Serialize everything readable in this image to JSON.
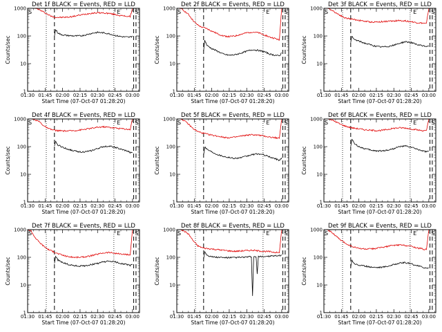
{
  "figure": {
    "x_tick_labels": [
      "01:30",
      "01:45",
      "02:00",
      "02:15",
      "02:30",
      "02:45",
      "03:00"
    ],
    "y_tick_labels": [
      "1",
      "10",
      "100",
      "1000"
    ],
    "xlabel": "Start Time (07-Oct-07 01:28:20)",
    "ylabel": "Counts/sec",
    "marker_s": "S",
    "marker_e": "E",
    "colors": {
      "events": "#000000",
      "lld": "#e00000"
    }
  },
  "chart_data": [
    {
      "type": "line",
      "title": "Det 1f BLACK = Events, RED = LLD",
      "xlabel": "Start Time (07-Oct-07 01:28:20)",
      "ylabel": "Counts/sec",
      "y_scale": "log",
      "ylim": [
        1,
        1000
      ],
      "xlim_minutes_from_0130": [
        0,
        96
      ],
      "markers": {
        "S_minute": 0,
        "E_minute": 76,
        "dotted_minutes": [
          16,
          74
        ],
        "dashed_minutes": [
          23,
          91,
          93
        ]
      },
      "series": [
        {
          "color": "red",
          "x": [
            0,
            2,
            5,
            8,
            12,
            16,
            20,
            23,
            27,
            30,
            35,
            40,
            45,
            50,
            55,
            60,
            65,
            70,
            75,
            80,
            85,
            88,
            90,
            92,
            94,
            95,
            96
          ],
          "y": [
            1000,
            1000,
            1000,
            980,
            800,
            650,
            520,
            480,
            470,
            470,
            480,
            520,
            570,
            620,
            670,
            690,
            680,
            650,
            600,
            540,
            520,
            500,
            1000,
            1000,
            1000,
            1000,
            1000
          ]
        },
        {
          "color": "black",
          "x": [
            23,
            24,
            26,
            28,
            31,
            34,
            38,
            42,
            46,
            50,
            55,
            60,
            65,
            70,
            75,
            80,
            84,
            87,
            89,
            90
          ],
          "y": [
            100,
            170,
            130,
            115,
            108,
            104,
            101,
            100,
            102,
            110,
            125,
            135,
            130,
            120,
            105,
            95,
            92,
            90,
            95,
            100
          ]
        }
      ]
    },
    {
      "type": "line",
      "title": "Det 2f BLACK = Events, RED = LLD",
      "xlabel": "Start Time (07-Oct-07 01:28:20)",
      "ylabel": "Counts/sec",
      "y_scale": "log",
      "ylim": [
        1,
        1000
      ],
      "xlim_minutes_from_0130": [
        0,
        96
      ],
      "markers": {
        "S_minute": 0,
        "E_minute": 76,
        "dotted_minutes": [
          16,
          74
        ],
        "dashed_minutes": [
          23,
          91,
          93
        ]
      },
      "series": [
        {
          "color": "red",
          "x": [
            0,
            2,
            5,
            10,
            15,
            18,
            21,
            25,
            30,
            35,
            40,
            45,
            50,
            55,
            60,
            65,
            70,
            75,
            80,
            85,
            88,
            90,
            92,
            94,
            96
          ],
          "y": [
            1000,
            1000,
            900,
            600,
            320,
            250,
            210,
            190,
            150,
            120,
            100,
            95,
            100,
            115,
            130,
            140,
            130,
            110,
            90,
            80,
            70,
            1000,
            1000,
            1000,
            1000
          ]
        },
        {
          "color": "black",
          "x": [
            23,
            24,
            26,
            30,
            35,
            40,
            45,
            50,
            55,
            60,
            65,
            70,
            75,
            80,
            85,
            88,
            90
          ],
          "y": [
            30,
            70,
            45,
            35,
            28,
            22,
            20,
            21,
            24,
            28,
            32,
            30,
            27,
            22,
            20,
            19,
            25
          ]
        }
      ]
    },
    {
      "type": "line",
      "title": "Det 3f BLACK = Events, RED = LLD",
      "xlabel": "Start Time (07-Oct-07 01:28:20)",
      "ylabel": "Counts/sec",
      "y_scale": "log",
      "ylim": [
        1,
        1000
      ],
      "xlim_minutes_from_0130": [
        0,
        96
      ],
      "markers": {
        "S_minute": 0,
        "E_minute": 76,
        "dotted_minutes": [
          16,
          74
        ],
        "dashed_minutes": [
          23,
          91,
          93
        ]
      },
      "series": [
        {
          "color": "red",
          "x": [
            0,
            3,
            6,
            10,
            14,
            18,
            22,
            25,
            30,
            35,
            40,
            45,
            50,
            55,
            60,
            65,
            70,
            75,
            80,
            85,
            88,
            90,
            92,
            94,
            96
          ],
          "y": [
            1000,
            1000,
            900,
            700,
            560,
            450,
            420,
            400,
            370,
            340,
            320,
            320,
            330,
            340,
            350,
            360,
            350,
            330,
            300,
            290,
            280,
            1000,
            1000,
            1000,
            1000
          ]
        },
        {
          "color": "black",
          "x": [
            23,
            24,
            26,
            30,
            35,
            40,
            45,
            50,
            55,
            60,
            65,
            70,
            75,
            80,
            85,
            88,
            90
          ],
          "y": [
            60,
            95,
            75,
            65,
            55,
            48,
            42,
            40,
            42,
            46,
            55,
            62,
            58,
            48,
            44,
            42,
            45
          ]
        }
      ]
    },
    {
      "type": "line",
      "title": "Det 4f BLACK = Events, RED = LLD",
      "xlabel": "Start Time (07-Oct-07 01:28:20)",
      "ylabel": "Counts/sec",
      "y_scale": "log",
      "ylim": [
        1,
        1000
      ],
      "xlim_minutes_from_0130": [
        0,
        96
      ],
      "markers": {
        "S_minute": 0,
        "E_minute": 76,
        "dotted_minutes": [
          16,
          74
        ],
        "dashed_minutes": [
          23,
          91,
          93
        ]
      },
      "series": [
        {
          "color": "red",
          "x": [
            0,
            3,
            6,
            10,
            14,
            18,
            22,
            25,
            30,
            35,
            40,
            45,
            50,
            55,
            60,
            65,
            70,
            75,
            80,
            85,
            88,
            90,
            92,
            94,
            96
          ],
          "y": [
            1000,
            1000,
            950,
            800,
            560,
            440,
            400,
            380,
            370,
            370,
            380,
            400,
            430,
            460,
            500,
            520,
            500,
            470,
            450,
            430,
            420,
            1000,
            1000,
            1000,
            1000
          ]
        },
        {
          "color": "black",
          "x": [
            23,
            24,
            26,
            30,
            35,
            40,
            45,
            50,
            55,
            60,
            65,
            70,
            75,
            80,
            85,
            88,
            90
          ],
          "y": [
            100,
            150,
            115,
            95,
            80,
            70,
            65,
            65,
            72,
            85,
            100,
            105,
            95,
            80,
            70,
            62,
            60
          ]
        }
      ]
    },
    {
      "type": "line",
      "title": "Det 5f BLACK = Events, RED = LLD",
      "xlabel": "Start Time (07-Oct-07 01:28:20)",
      "ylabel": "Counts/sec",
      "y_scale": "log",
      "ylim": [
        1,
        1000
      ],
      "xlim_minutes_from_0130": [
        0,
        96
      ],
      "markers": {
        "S_minute": 0,
        "E_minute": 76,
        "dotted_minutes": [
          16,
          74
        ],
        "dashed_minutes": [
          23,
          91,
          93
        ]
      },
      "series": [
        {
          "color": "red",
          "x": [
            0,
            3,
            6,
            10,
            14,
            18,
            22,
            25,
            30,
            35,
            40,
            45,
            50,
            55,
            60,
            65,
            70,
            75,
            80,
            85,
            88,
            90,
            92,
            94,
            96
          ],
          "y": [
            1000,
            1000,
            900,
            650,
            450,
            350,
            310,
            290,
            260,
            240,
            220,
            210,
            220,
            240,
            260,
            270,
            260,
            240,
            220,
            210,
            200,
            1000,
            1000,
            1000,
            1000
          ]
        },
        {
          "color": "black",
          "x": [
            23,
            24,
            26,
            30,
            35,
            40,
            45,
            50,
            55,
            60,
            65,
            70,
            75,
            80,
            85,
            88,
            90
          ],
          "y": [
            50,
            100,
            80,
            65,
            52,
            45,
            40,
            38,
            40,
            45,
            52,
            55,
            50,
            42,
            36,
            32,
            40
          ]
        }
      ]
    },
    {
      "type": "line",
      "title": "Det 6f BLACK = Events, RED = LLD",
      "xlabel": "Start Time (07-Oct-07 01:28:20)",
      "ylabel": "Counts/sec",
      "y_scale": "log",
      "ylim": [
        1,
        1000
      ],
      "xlim_minutes_from_0130": [
        0,
        96
      ],
      "markers": {
        "S_minute": 0,
        "E_minute": 76,
        "dotted_minutes": [
          16,
          74
        ],
        "dashed_minutes": [
          23,
          91,
          93
        ]
      },
      "series": [
        {
          "color": "red",
          "x": [
            0,
            3,
            6,
            10,
            14,
            18,
            22,
            25,
            30,
            35,
            40,
            45,
            50,
            55,
            60,
            65,
            70,
            75,
            80,
            85,
            88,
            90,
            92,
            94,
            96
          ],
          "y": [
            1000,
            1000,
            950,
            800,
            650,
            560,
            500,
            470,
            440,
            410,
            390,
            380,
            390,
            420,
            460,
            480,
            470,
            440,
            400,
            380,
            370,
            1000,
            1000,
            1000,
            1000
          ]
        },
        {
          "color": "black",
          "x": [
            23,
            24,
            26,
            30,
            35,
            40,
            45,
            50,
            55,
            60,
            65,
            70,
            75,
            80,
            85,
            88,
            90
          ],
          "y": [
            100,
            190,
            130,
            100,
            85,
            75,
            70,
            70,
            75,
            85,
            100,
            105,
            95,
            80,
            70,
            65,
            70
          ]
        }
      ]
    },
    {
      "type": "line",
      "title": "Det 7f BLACK = Events, RED = LLD",
      "xlabel": "Start Time (07-Oct-07 01:28:20)",
      "ylabel": "Counts/sec",
      "y_scale": "log",
      "ylim": [
        1,
        1000
      ],
      "xlim_minutes_from_0130": [
        0,
        96
      ],
      "markers": {
        "S_minute": 0,
        "E_minute": 76,
        "dotted_minutes": [
          16,
          74
        ],
        "dashed_minutes": [
          23,
          91,
          93
        ]
      },
      "series": [
        {
          "color": "red",
          "x": [
            0,
            3,
            6,
            10,
            14,
            18,
            22,
            25,
            30,
            35,
            40,
            45,
            50,
            55,
            60,
            65,
            70,
            75,
            80,
            85,
            88,
            90,
            92,
            94,
            96
          ],
          "y": [
            1000,
            900,
            550,
            350,
            250,
            190,
            160,
            140,
            120,
            105,
            100,
            100,
            105,
            115,
            130,
            145,
            150,
            140,
            130,
            125,
            120,
            1000,
            1000,
            1000,
            1000
          ]
        },
        {
          "color": "black",
          "x": [
            23,
            24,
            26,
            30,
            35,
            40,
            45,
            50,
            55,
            60,
            65,
            70,
            75,
            80,
            85,
            88,
            90
          ],
          "y": [
            60,
            110,
            80,
            65,
            55,
            50,
            48,
            50,
            55,
            60,
            68,
            72,
            68,
            60,
            55,
            50,
            55
          ]
        }
      ]
    },
    {
      "type": "line",
      "title": "Det 8f BLACK = Events, RED = LLD",
      "xlabel": "Start Time (07-Oct-07 01:28:20)",
      "ylabel": "Counts/sec",
      "y_scale": "log",
      "ylim": [
        1,
        1000
      ],
      "xlim_minutes_from_0130": [
        0,
        96
      ],
      "markers": {
        "S_minute": 0,
        "E_minute": 76,
        "dotted_minutes": [
          16,
          74
        ],
        "dashed_minutes": [
          23,
          91,
          93
        ]
      },
      "series": [
        {
          "color": "red",
          "x": [
            0,
            3,
            6,
            10,
            14,
            18,
            22,
            25,
            30,
            35,
            40,
            45,
            50,
            55,
            60,
            65,
            70,
            75,
            80,
            85,
            88,
            90,
            92,
            94,
            96
          ],
          "y": [
            1000,
            1000,
            900,
            700,
            400,
            260,
            220,
            210,
            200,
            190,
            180,
            170,
            165,
            170,
            175,
            180,
            170,
            165,
            160,
            150,
            145,
            1000,
            1000,
            1000,
            1000
          ]
        },
        {
          "color": "black",
          "x": [
            23,
            24,
            26,
            30,
            35,
            40,
            45,
            50,
            55,
            60,
            64,
            65,
            66,
            68,
            69,
            70,
            75,
            80,
            85,
            88,
            90
          ],
          "y": [
            90,
            160,
            120,
            105,
            100,
            98,
            97,
            98,
            100,
            102,
            104,
            4,
            104,
            105,
            25,
            105,
            107,
            110,
            112,
            115,
            120
          ]
        }
      ]
    },
    {
      "type": "line",
      "title": "Det 9f BLACK = Events, RED = LLD",
      "xlabel": "Start Time (07-Oct-07 01:28:20)",
      "ylabel": "Counts/sec",
      "y_scale": "log",
      "ylim": [
        1,
        1000
      ],
      "xlim_minutes_from_0130": [
        0,
        96
      ],
      "markers": {
        "S_minute": 0,
        "E_minute": 76,
        "dotted_minutes": [
          16,
          74
        ],
        "dashed_minutes": [
          23,
          91,
          93
        ]
      },
      "series": [
        {
          "color": "red",
          "x": [
            0,
            3,
            6,
            10,
            14,
            18,
            22,
            25,
            30,
            35,
            40,
            45,
            50,
            55,
            60,
            65,
            70,
            75,
            80,
            85,
            88,
            90,
            92,
            94,
            96
          ],
          "y": [
            1000,
            1000,
            850,
            600,
            430,
            330,
            270,
            240,
            210,
            200,
            200,
            210,
            230,
            250,
            270,
            280,
            270,
            250,
            220,
            200,
            190,
            1000,
            1000,
            1000,
            1000
          ]
        },
        {
          "color": "black",
          "x": [
            23,
            24,
            26,
            30,
            35,
            40,
            45,
            50,
            55,
            60,
            65,
            70,
            75,
            80,
            85,
            88,
            90
          ],
          "y": [
            45,
            80,
            60,
            52,
            48,
            45,
            43,
            44,
            48,
            55,
            62,
            64,
            58,
            50,
            44,
            40,
            42
          ]
        }
      ]
    }
  ]
}
